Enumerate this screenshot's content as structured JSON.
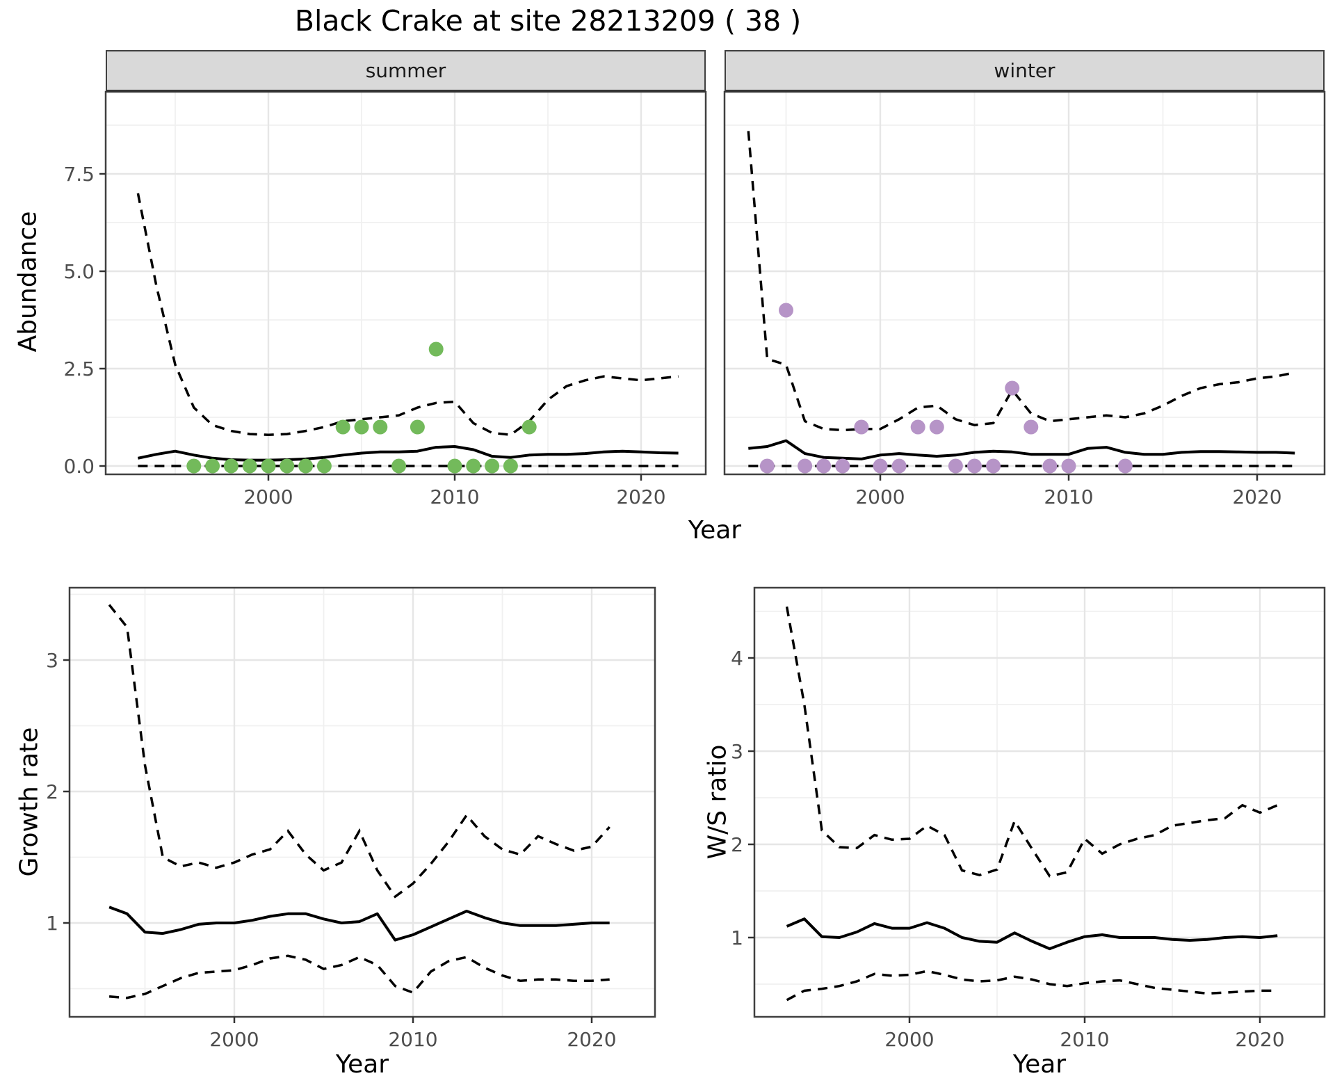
{
  "title": "Black Crake at site 28213209 ( 38 )",
  "facet_labels": {
    "summer": "summer",
    "winter": "winter"
  },
  "axis_titles": {
    "abundance": "Abundance",
    "growth": "Growth rate",
    "ratio": "W/S ratio",
    "year_top": "Year",
    "year_bottom_left": "Year",
    "year_bottom_right": "Year"
  },
  "colors": {
    "summer_points": "#73BA5B",
    "winter_points": "#B694C7",
    "line": "#000000",
    "grid_major": "#E6E6E6",
    "grid_minor": "#F0F0F0",
    "panel_border": "#404040",
    "strip_bg": "#D9D9D9",
    "tick_text": "#4D4D4D"
  },
  "chart_data": {
    "type": "line",
    "title": "Black Crake at site 28213209 ( 38 )",
    "xlabel": "Year",
    "legend": "none",
    "panels": [
      {
        "key": "summer",
        "facet": "summer",
        "ylabel": "Abundance",
        "x_major": [
          2000,
          2010,
          2020
        ],
        "x_minor": [
          1995,
          2005,
          2015
        ],
        "x_tick_labels": [
          "2000",
          "2010",
          "2020"
        ],
        "y_major": [
          0,
          2.5,
          5,
          7.5
        ],
        "y_minor": [
          1.25,
          3.75,
          6.25,
          8.75
        ],
        "y_tick_labels": [
          "0.0",
          "2.5",
          "5.0",
          "7.5"
        ],
        "xlim": [
          1991.3,
          2023.5
        ],
        "ylim": [
          -0.21,
          9.6
        ],
        "years": [
          1993,
          1994,
          1995,
          1996,
          1997,
          1998,
          1999,
          2000,
          2001,
          2002,
          2003,
          2004,
          2005,
          2006,
          2007,
          2008,
          2009,
          2010,
          2011,
          2012,
          2013,
          2014,
          2015,
          2016,
          2017,
          2018,
          2019,
          2020,
          2021,
          2022
        ],
        "upper_ci": [
          7.0,
          4.6,
          2.6,
          1.5,
          1.05,
          0.9,
          0.82,
          0.8,
          0.82,
          0.9,
          1.0,
          1.15,
          1.2,
          1.25,
          1.3,
          1.5,
          1.62,
          1.65,
          1.1,
          0.85,
          0.8,
          1.15,
          1.7,
          2.05,
          2.2,
          2.3,
          2.25,
          2.2,
          2.25,
          2.3
        ],
        "median": [
          0.2,
          0.3,
          0.38,
          0.28,
          0.2,
          0.16,
          0.15,
          0.15,
          0.16,
          0.18,
          0.22,
          0.28,
          0.33,
          0.36,
          0.36,
          0.38,
          0.48,
          0.5,
          0.42,
          0.25,
          0.22,
          0.28,
          0.3,
          0.3,
          0.32,
          0.36,
          0.38,
          0.36,
          0.34,
          0.33
        ],
        "lower_ci": [
          0,
          0,
          0,
          0,
          0,
          0,
          0,
          0,
          0,
          0,
          0,
          0,
          0,
          0,
          0,
          0,
          0,
          0,
          0,
          0,
          0,
          0,
          0,
          0,
          0,
          0,
          0,
          0,
          0,
          0
        ],
        "points_x": [
          1996,
          1997,
          1998,
          1999,
          2000,
          2001,
          2002,
          2003,
          2004,
          2005,
          2006,
          2007,
          2008,
          2009,
          2010,
          2011,
          2012,
          2013,
          2014
        ],
        "points_y": [
          0,
          0,
          0,
          0,
          0,
          0,
          0,
          0,
          1,
          1,
          1,
          0,
          1,
          3,
          0,
          0,
          0,
          0,
          1
        ],
        "point_color": "#73BA5B"
      },
      {
        "key": "winter",
        "facet": "winter",
        "ylabel": "Abundance",
        "x_major": [
          2000,
          2010,
          2020
        ],
        "x_minor": [
          1995,
          2005,
          2015
        ],
        "x_tick_labels": [
          "2000",
          "2010",
          "2020"
        ],
        "y_major": [
          0,
          2.5,
          5,
          7.5
        ],
        "y_minor": [
          1.25,
          3.75,
          6.25,
          8.75
        ],
        "y_tick_labels": [],
        "xlim": [
          1991.7,
          2023.6
        ],
        "ylim": [
          -0.21,
          9.6
        ],
        "years": [
          1993,
          1994,
          1995,
          1996,
          1997,
          1998,
          1999,
          2000,
          2001,
          2002,
          2003,
          2004,
          2005,
          2006,
          2007,
          2008,
          2009,
          2010,
          2011,
          2012,
          2013,
          2014,
          2015,
          2016,
          2017,
          2018,
          2019,
          2020,
          2021,
          2022
        ],
        "upper_ci": [
          8.6,
          2.75,
          2.6,
          1.15,
          0.95,
          0.92,
          0.95,
          0.95,
          1.2,
          1.5,
          1.55,
          1.2,
          1.05,
          1.1,
          1.95,
          1.35,
          1.15,
          1.2,
          1.25,
          1.3,
          1.25,
          1.35,
          1.55,
          1.8,
          2.0,
          2.1,
          2.15,
          2.25,
          2.3,
          2.4
        ],
        "median": [
          0.45,
          0.5,
          0.65,
          0.32,
          0.22,
          0.2,
          0.18,
          0.28,
          0.32,
          0.28,
          0.25,
          0.28,
          0.35,
          0.38,
          0.36,
          0.3,
          0.3,
          0.3,
          0.45,
          0.48,
          0.35,
          0.3,
          0.3,
          0.35,
          0.37,
          0.37,
          0.36,
          0.35,
          0.35,
          0.33
        ],
        "lower_ci": [
          0,
          0,
          0,
          0,
          0,
          0,
          0,
          0,
          0,
          0,
          0,
          0,
          0,
          0,
          0,
          0,
          0,
          0,
          0,
          0,
          0,
          0,
          0,
          0,
          0,
          0,
          0,
          0,
          0,
          0
        ],
        "points_x": [
          1994,
          1995,
          1996,
          1997,
          1998,
          1999,
          2000,
          2001,
          2002,
          2003,
          2004,
          2005,
          2006,
          2007,
          2008,
          2009,
          2010,
          2013
        ],
        "points_y": [
          0,
          4,
          0,
          0,
          0,
          1,
          0,
          0,
          1,
          1,
          0,
          0,
          0,
          2,
          1,
          0,
          0,
          0
        ],
        "point_color": "#B694C7"
      },
      {
        "key": "growth",
        "facet": null,
        "ylabel": "Growth rate",
        "x_major": [
          2000,
          2010,
          2020
        ],
        "x_minor": [
          1995,
          2005,
          2015
        ],
        "x_tick_labels": [
          "2000",
          "2010",
          "2020"
        ],
        "y_major": [
          1,
          2,
          3
        ],
        "y_minor": [
          0.5,
          1.5,
          2.5,
          3.5
        ],
        "y_tick_labels": [
          "1",
          "2",
          "3"
        ],
        "xlim": [
          1990.8,
          2023.5
        ],
        "ylim": [
          0.29,
          3.56
        ],
        "years": [
          1993,
          1994,
          1995,
          1996,
          1997,
          1998,
          1999,
          2000,
          2001,
          2002,
          2003,
          2004,
          2005,
          2006,
          2007,
          2008,
          2009,
          2010,
          2011,
          2012,
          2013,
          2014,
          2015,
          2016,
          2017,
          2018,
          2019,
          2020,
          2021
        ],
        "upper_ci": [
          3.42,
          3.25,
          2.2,
          1.5,
          1.43,
          1.46,
          1.42,
          1.46,
          1.52,
          1.56,
          1.7,
          1.52,
          1.4,
          1.46,
          1.7,
          1.4,
          1.2,
          1.3,
          1.45,
          1.62,
          1.82,
          1.66,
          1.56,
          1.52,
          1.66,
          1.6,
          1.55,
          1.58,
          1.73
        ],
        "median": [
          1.12,
          1.07,
          0.93,
          0.92,
          0.95,
          0.99,
          1.0,
          1.0,
          1.02,
          1.05,
          1.07,
          1.07,
          1.03,
          1.0,
          1.01,
          1.07,
          0.87,
          0.91,
          0.97,
          1.03,
          1.09,
          1.04,
          1.0,
          0.98,
          0.98,
          0.98,
          0.99,
          1.0,
          1.0
        ],
        "lower_ci": [
          0.44,
          0.43,
          0.46,
          0.52,
          0.58,
          0.62,
          0.63,
          0.64,
          0.68,
          0.73,
          0.75,
          0.72,
          0.65,
          0.68,
          0.74,
          0.68,
          0.52,
          0.47,
          0.63,
          0.71,
          0.74,
          0.66,
          0.6,
          0.56,
          0.57,
          0.57,
          0.56,
          0.56,
          0.57
        ],
        "points_x": [],
        "points_y": [],
        "point_color": null
      },
      {
        "key": "ratio",
        "facet": null,
        "ylabel": "W/S ratio",
        "x_major": [
          2000,
          2010,
          2020
        ],
        "x_minor": [
          1995,
          2005,
          2015
        ],
        "x_tick_labels": [
          "2000",
          "2010",
          "2020"
        ],
        "y_major": [
          1,
          2,
          3,
          4
        ],
        "y_minor": [
          0.5,
          1.5,
          2.5,
          3.5,
          4.5
        ],
        "y_tick_labels": [
          "1",
          "2",
          "3",
          "4"
        ],
        "xlim": [
          1991.2,
          2023.7
        ],
        "ylim": [
          0.15,
          4.75
        ],
        "years": [
          1993,
          1994,
          1995,
          1996,
          1997,
          1998,
          1999,
          2000,
          2001,
          2002,
          2003,
          2004,
          2005,
          2006,
          2007,
          2008,
          2009,
          2010,
          2011,
          2012,
          2013,
          2014,
          2015,
          2016,
          2017,
          2018,
          2019,
          2020,
          2021
        ],
        "upper_ci": [
          4.55,
          3.5,
          2.15,
          1.97,
          1.96,
          2.1,
          2.05,
          2.06,
          2.2,
          2.1,
          1.72,
          1.67,
          1.73,
          2.25,
          1.95,
          1.66,
          1.7,
          2.06,
          1.9,
          2.0,
          2.06,
          2.1,
          2.2,
          2.23,
          2.26,
          2.28,
          2.42,
          2.34,
          2.42
        ],
        "median": [
          1.12,
          1.2,
          1.01,
          1.0,
          1.06,
          1.15,
          1.1,
          1.1,
          1.16,
          1.1,
          1.0,
          0.96,
          0.95,
          1.05,
          0.96,
          0.88,
          0.95,
          1.01,
          1.03,
          1.0,
          1.0,
          1.0,
          0.98,
          0.97,
          0.98,
          1.0,
          1.01,
          1.0,
          1.02
        ],
        "lower_ci": [
          0.33,
          0.43,
          0.45,
          0.48,
          0.53,
          0.61,
          0.59,
          0.6,
          0.64,
          0.6,
          0.55,
          0.53,
          0.54,
          0.58,
          0.55,
          0.5,
          0.48,
          0.51,
          0.53,
          0.54,
          0.5,
          0.46,
          0.44,
          0.42,
          0.4,
          0.41,
          0.42,
          0.43,
          0.43
        ],
        "points_x": [],
        "points_y": [],
        "point_color": null
      }
    ]
  }
}
